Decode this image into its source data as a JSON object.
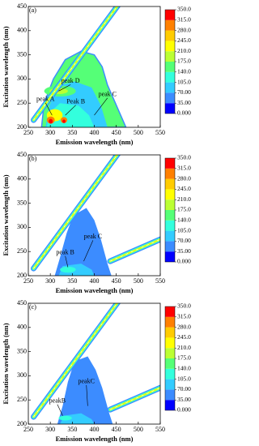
{
  "chart_data": [
    {
      "type": "contour",
      "panel_label": "(a)",
      "xlabel": "Emission  wavelength (nm)",
      "ylabel": "Excitation wavelength (nm)",
      "xlim": [
        250,
        550
      ],
      "ylim": [
        200,
        450
      ],
      "xticks": [
        250,
        300,
        350,
        400,
        450,
        500,
        550
      ],
      "yticks": [
        200,
        250,
        300,
        350,
        400,
        450
      ],
      "colorbar": {
        "ticks": [
          {
            "value": 0,
            "label": "0.000"
          },
          {
            "value": 35,
            "label": "35.00"
          },
          {
            "value": 70,
            "label": "70.00"
          },
          {
            "value": 105,
            "label": "105.0"
          },
          {
            "value": 140,
            "label": "140.0"
          },
          {
            "value": 175,
            "label": "175.0"
          },
          {
            "value": 210,
            "label": "210.0"
          },
          {
            "value": 245,
            "label": "245.0"
          },
          {
            "value": 280,
            "label": "280.0"
          },
          {
            "value": 315,
            "label": "315.0"
          },
          {
            "value": 350,
            "label": "350.0"
          }
        ],
        "colors": [
          "#0000ff",
          "#3c8cff",
          "#33ccff",
          "#33ffdd",
          "#55ff77",
          "#bbff33",
          "#ffff00",
          "#ffcc00",
          "#ff8000",
          "#ff0000"
        ]
      },
      "annotations": [
        "peak D",
        "peak A",
        "Peak B",
        "peak C"
      ]
    },
    {
      "type": "contour",
      "panel_label": "(b)",
      "xlabel": "Emission wavelength (nm)",
      "ylabel": "Excitation wavelength (nm)",
      "xlim": [
        250,
        550
      ],
      "ylim": [
        200,
        450
      ],
      "xticks": [
        250,
        300,
        350,
        400,
        450,
        500,
        550
      ],
      "yticks": [
        200,
        250,
        300,
        350,
        400,
        450
      ],
      "colorbar": {
        "ticks": [
          {
            "value": 0,
            "label": "0.000"
          },
          {
            "value": 35,
            "label": "35.00"
          },
          {
            "value": 70,
            "label": "70.00"
          },
          {
            "value": 105,
            "label": "105.0"
          },
          {
            "value": 140,
            "label": "140.0"
          },
          {
            "value": 175,
            "label": "175.0"
          },
          {
            "value": 210,
            "label": "210.0"
          },
          {
            "value": 245,
            "label": "245.0"
          },
          {
            "value": 280,
            "label": "280.0"
          },
          {
            "value": 315,
            "label": "315.0"
          },
          {
            "value": 350,
            "label": "350.0"
          }
        ],
        "colors": [
          "#0000ff",
          "#3c8cff",
          "#33ccff",
          "#33ffdd",
          "#55ff77",
          "#bbff33",
          "#ffff00",
          "#ffcc00",
          "#ff8000",
          "#ff0000"
        ]
      },
      "annotations": [
        "peak B",
        "peak C"
      ]
    },
    {
      "type": "contour",
      "panel_label": "(c)",
      "xlabel": "Emission wavelength (nm)",
      "ylabel": "Excitation wavelength (nm)",
      "xlim": [
        250,
        550
      ],
      "ylim": [
        200,
        450
      ],
      "xticks": [
        250,
        300,
        350,
        400,
        450,
        500,
        550
      ],
      "yticks": [
        200,
        250,
        300,
        350,
        400,
        450
      ],
      "colorbar": {
        "ticks": [
          {
            "value": 0,
            "label": "0.000"
          },
          {
            "value": 35,
            "label": "35.00"
          },
          {
            "value": 70,
            "label": "70.00"
          },
          {
            "value": 105,
            "label": "105.0"
          },
          {
            "value": 140,
            "label": "140.0"
          },
          {
            "value": 175,
            "label": "175.0"
          },
          {
            "value": 210,
            "label": "210.0"
          },
          {
            "value": 245,
            "label": "245.0"
          },
          {
            "value": 280,
            "label": "280.0"
          },
          {
            "value": 315,
            "label": "315.0"
          },
          {
            "value": 350,
            "label": "350.0"
          }
        ],
        "colors": [
          "#0000ff",
          "#3c8cff",
          "#33ccff",
          "#33ffdd",
          "#55ff77",
          "#bbff33",
          "#ffff00",
          "#ffcc00",
          "#ff8000",
          "#ff0000"
        ]
      },
      "annotations": [
        "peakB",
        "peakC"
      ]
    }
  ]
}
